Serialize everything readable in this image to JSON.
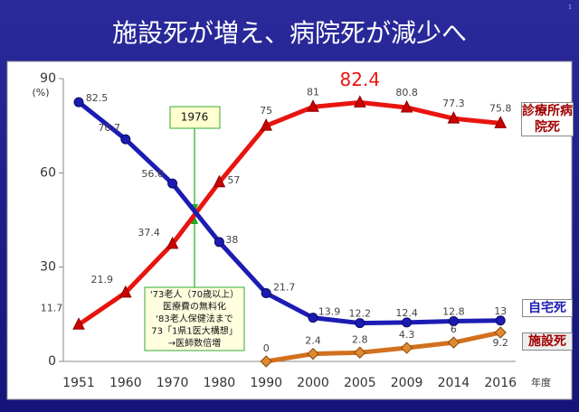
{
  "page_number": "1",
  "chart_data": {
    "type": "line",
    "title": "施設死が増え、病院死が減少へ",
    "y_unit": "(%)",
    "x_label": "年度",
    "categories": [
      "1951",
      "1960",
      "1970",
      "1980",
      "1990",
      "2000",
      "2005",
      "2009",
      "2014",
      "2016"
    ],
    "ylim": [
      0,
      90
    ],
    "yticks": [
      0,
      30,
      60,
      90
    ],
    "series": [
      {
        "name": "診療所病院死",
        "color": "#e8140f",
        "marker": "triangle",
        "values": [
          11.7,
          21.9,
          37.4,
          57,
          75,
          81,
          82.4,
          80.8,
          77.3,
          75.8
        ]
      },
      {
        "name": "自宅死",
        "color": "#1c1cb4",
        "marker": "circle",
        "values": [
          82.5,
          70.7,
          56.6,
          38,
          21.7,
          13.9,
          12.2,
          12.4,
          12.8,
          13
        ]
      },
      {
        "name": "施設死",
        "color": "#d2701e",
        "marker": "diamond",
        "values": [
          null,
          null,
          null,
          null,
          0,
          2.4,
          2.8,
          4.3,
          6,
          9.2
        ]
      }
    ],
    "annotations": {
      "year_box": "1976",
      "policy_lines": [
        "'73老人（70歳以上）",
        "医療費の無料化",
        "'83老人保健法まで",
        "73「1県1医大構想」",
        "→医師数倍増"
      ]
    }
  }
}
